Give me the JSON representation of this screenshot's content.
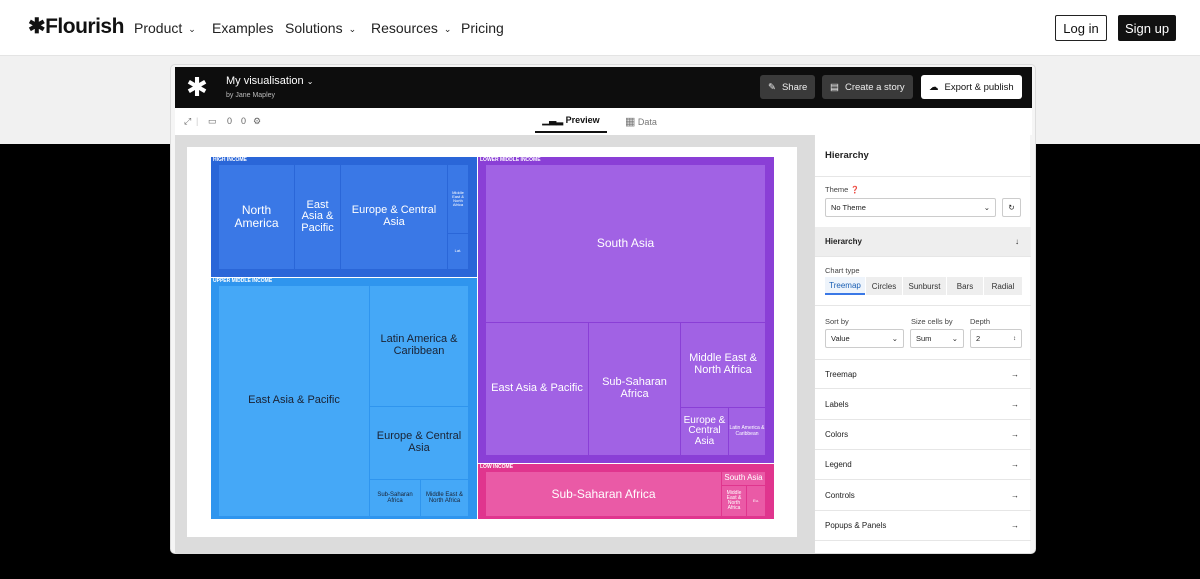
{
  "nav": {
    "logo": "✱Flourish",
    "items": [
      {
        "label": "Product",
        "dropdown": true
      },
      {
        "label": "Examples",
        "dropdown": false
      },
      {
        "label": "Solutions",
        "dropdown": true
      },
      {
        "label": "Resources",
        "dropdown": true
      },
      {
        "label": "Pricing",
        "dropdown": false
      }
    ],
    "login": "Log in",
    "signup": "Sign up"
  },
  "app": {
    "title": "My visualisation",
    "author": "by Jane Mapley",
    "buttons": {
      "share": "Share",
      "story": "Create a story",
      "export": "Export & publish"
    },
    "toolbar": {
      "counter1": "0",
      "counter2": "0"
    },
    "tabs": {
      "preview": "Preview",
      "data": "Data"
    }
  },
  "treemap": {
    "groups": {
      "high": "HIGH INCOME",
      "upper": "UPPER MIDDLE INCOME",
      "lower": "LOWER MIDDLE INCOME",
      "low": "LOW INCOME"
    },
    "cells": {
      "h1": "North America",
      "h2": "East Asia & Pacific",
      "h3": "Europe & Central Asia",
      "h4": "Middle East & North Africa",
      "h5": "Lat.",
      "u1": "East Asia & Pacific",
      "u2": "Latin America & Caribbean",
      "u3": "Europe & Central Asia",
      "u4": "Sub-Saharan Africa",
      "u5": "Middle East & North Africa",
      "l1": "South Asia",
      "l2": "East Asia & Pacific",
      "l3": "Sub-Saharan Africa",
      "l4": "Middle East & North Africa",
      "l5": "Europe & Central Asia",
      "l6": "Latin America & Caribbean",
      "w1": "Sub-Saharan Africa",
      "w2": "South Asia",
      "w3": "Middle East & North Africa",
      "w4": "Eu."
    },
    "colors": {
      "high": "#2e6fe0",
      "upper": "#3aa1f5",
      "lower": "#9b52e0",
      "low": "#e8459a"
    }
  },
  "sidebar": {
    "heading": "Hierarchy",
    "theme_label": "Theme",
    "theme_value": "No Theme",
    "section_hierarchy": "Hierarchy",
    "chart_type_label": "Chart type",
    "chart_types": [
      "Treemap",
      "Circles",
      "Sunburst",
      "Bars",
      "Radial"
    ],
    "sort_label": "Sort by",
    "sort_value": "Value",
    "size_label": "Size cells by",
    "size_value": "Sum",
    "depth_label": "Depth",
    "depth_value": "2",
    "sections": [
      "Treemap",
      "Labels",
      "Colors",
      "Legend",
      "Controls",
      "Popups & Panels"
    ]
  }
}
